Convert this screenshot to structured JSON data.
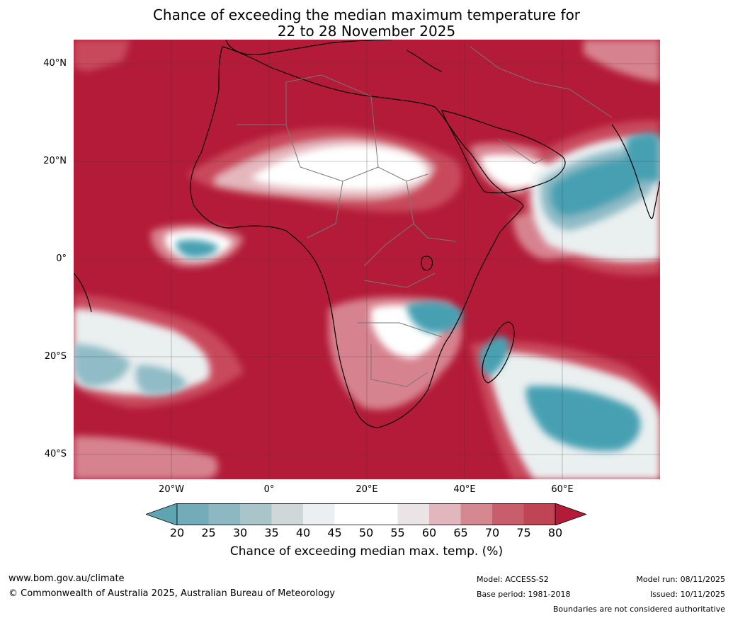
{
  "title": {
    "line1": "Chance of exceeding the median maximum temperature for",
    "line2": "22 to 28 November 2025"
  },
  "map": {
    "lat_labels": [
      "40°N",
      "20°N",
      "0°",
      "20°S",
      "40°S"
    ],
    "lon_labels": [
      "20°W",
      "0°",
      "20°E",
      "40°E",
      "60°E"
    ],
    "colors": {
      "hot": "#b31b38",
      "warm1": "#c94a5b",
      "warm2": "#d7838f",
      "warm3": "#e4b7bd",
      "neutral": "#ffffff",
      "cool1": "#eaeff0",
      "cool2": "#c9d5d8",
      "cool3": "#8fbcc6",
      "cold": "#47a0b2"
    }
  },
  "colorbar": {
    "ticks": [
      "20",
      "25",
      "30",
      "35",
      "40",
      "45",
      "50",
      "55",
      "60",
      "65",
      "70",
      "75",
      "80"
    ],
    "colors": [
      "#5fa4b1",
      "#74abb8",
      "#8db8c2",
      "#aac5ca",
      "#d0d7d9",
      "#eceff1",
      "#ffffff",
      "#ffffff",
      "#ebe4e6",
      "#e1b7bd",
      "#d68891",
      "#c85e6c",
      "#bf4454",
      "#b31b38"
    ],
    "label": "Chance of exceeding median max. temp. (%)"
  },
  "footer": {
    "website": "www.bom.gov.au/climate",
    "copyright": "© Commonwealth of Australia 2025, Australian Bureau of Meteorology",
    "model": "Model: ACCESS-S2",
    "base_period": "Base period: 1981-2018",
    "model_run": "Model run: 08/11/2025",
    "issued": "Issued: 10/11/2025",
    "disclaimer": "Boundaries are not considered authoritative"
  }
}
